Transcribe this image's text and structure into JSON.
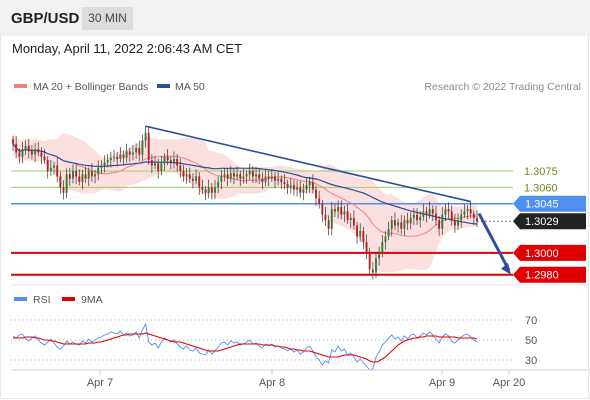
{
  "header": {
    "pair": "GBP/USD",
    "timeframe": "30 MIN",
    "datetime": "Monday, April 11, 2022 2:06:43 AM CET"
  },
  "legend": {
    "bollinger": "MA 20 + Bollinger Bands",
    "ma50": "MA 50",
    "credit": "Research © 2022 Trading Central",
    "rsi": "RSI",
    "rsi_ma": "9MA"
  },
  "colors": {
    "candle_up": "#2f7d2f",
    "candle_down": "#b22222",
    "bollinger_band": "#fbd9d9",
    "bollinger_line": "#f08080",
    "ma50": "#2b4f9c",
    "trendline": "#2b4f9c",
    "pivot": "#4f8ff0",
    "support": "#e00000",
    "resistance": "#9acd6a",
    "last_price": "#222222",
    "rsi_line": "#4f8ff0",
    "rsi_ma_line": "#e00000"
  },
  "levels": {
    "resistance": [
      "1.3075",
      "1.3060"
    ],
    "pivot": "1.3045",
    "last_price": "1.3029",
    "support": [
      "1.3000",
      "1.2980"
    ]
  },
  "chart_data": [
    {
      "type": "candlestick",
      "title": "GBP/USD 30 MIN",
      "x_ticks": [
        "Apr 7",
        "Apr 8",
        "Apr 9",
        "Apr 20"
      ],
      "ylim": [
        1.2977,
        1.314
      ],
      "grid": false,
      "legend_position": "top-left",
      "horizontal_levels": [
        {
          "value": 1.3075,
          "label": "1.3075",
          "kind": "resistance"
        },
        {
          "value": 1.306,
          "label": "1.3060",
          "kind": "resistance"
        },
        {
          "value": 1.3045,
          "label": "1.3045",
          "kind": "pivot"
        },
        {
          "value": 1.3029,
          "label": "1.3029",
          "kind": "last"
        },
        {
          "value": 1.3,
          "label": "1.3000",
          "kind": "support"
        },
        {
          "value": 1.298,
          "label": "1.2980",
          "kind": "support"
        }
      ],
      "close": [
        1.31,
        1.3092,
        1.3088,
        1.3095,
        1.3098,
        1.3093,
        1.309,
        1.3095,
        1.3092,
        1.3088,
        1.3085,
        1.3075,
        1.3078,
        1.308,
        1.307,
        1.306,
        1.3055,
        1.3072,
        1.3068,
        1.3075,
        1.307,
        1.3065,
        1.3072,
        1.3068,
        1.3075,
        1.307,
        1.3072,
        1.3078,
        1.308,
        1.3083,
        1.3085,
        1.3087,
        1.3088,
        1.3086,
        1.309,
        1.3087,
        1.3093,
        1.309,
        1.3092,
        1.3096,
        1.309,
        1.3103,
        1.311,
        1.3085,
        1.308,
        1.3082,
        1.3075,
        1.3082,
        1.3088,
        1.3085,
        1.3083,
        1.3086,
        1.308,
        1.3075,
        1.307,
        1.3072,
        1.3068,
        1.3066,
        1.307,
        1.306,
        1.3058,
        1.3055,
        1.306,
        1.3055,
        1.306,
        1.3065,
        1.307,
        1.3072,
        1.3068,
        1.3073,
        1.307,
        1.3072,
        1.3068,
        1.307,
        1.3072,
        1.3075,
        1.307,
        1.3072,
        1.3068,
        1.3065,
        1.307,
        1.3068,
        1.307,
        1.3066,
        1.3068,
        1.3065,
        1.3063,
        1.306,
        1.3062,
        1.3058,
        1.306,
        1.3055,
        1.3058,
        1.3062,
        1.3065,
        1.3058,
        1.305,
        1.3045,
        1.3035,
        1.303,
        1.3022,
        1.304,
        1.3038,
        1.3042,
        1.3035,
        1.3038,
        1.303,
        1.3032,
        1.3025,
        1.3015,
        1.302,
        1.301,
        1.3,
        1.2985,
        1.2982,
        1.2995,
        1.3,
        1.301,
        1.3015,
        1.3022,
        1.303,
        1.3025,
        1.3028,
        1.3022,
        1.303,
        1.3027,
        1.3032,
        1.3035,
        1.303,
        1.3033,
        1.3038,
        1.3035,
        1.304,
        1.3036,
        1.303,
        1.3022,
        1.3035,
        1.304,
        1.3038,
        1.303,
        1.3025,
        1.303,
        1.3035,
        1.3038,
        1.304,
        1.3036,
        1.3032,
        1.3029
      ]
    },
    {
      "type": "line",
      "title": "RSI",
      "ylim": [
        20,
        80
      ],
      "y_ticks": [
        70,
        50,
        30
      ],
      "series": [
        {
          "name": "RSI",
          "values": [
            54,
            52,
            55,
            56,
            51,
            49,
            52,
            54,
            50,
            47,
            45,
            48,
            51,
            47,
            43,
            41,
            44,
            49,
            46,
            48,
            46,
            45,
            49,
            47,
            51,
            48,
            50,
            52,
            53,
            55,
            56,
            58,
            57,
            56,
            59,
            55,
            57,
            54,
            55,
            58,
            52,
            60,
            66,
            48,
            45,
            47,
            42,
            48,
            52,
            50,
            48,
            50,
            46,
            43,
            41,
            44,
            40,
            39,
            42,
            37,
            36,
            35,
            40,
            36,
            39,
            43,
            47,
            48,
            45,
            49,
            47,
            48,
            45,
            46,
            48,
            50,
            46,
            47,
            44,
            42,
            46,
            44,
            46,
            43,
            44,
            42,
            41,
            39,
            41,
            38,
            40,
            36,
            38,
            42,
            44,
            39,
            33,
            30,
            25,
            29,
            27,
            40,
            38,
            44,
            39,
            41,
            35,
            37,
            33,
            28,
            31,
            27,
            24,
            20,
            21,
            33,
            38,
            45,
            48,
            52,
            55,
            51,
            53,
            49,
            54,
            51,
            55,
            56,
            52,
            54,
            57,
            55,
            58,
            55,
            51,
            47,
            53,
            56,
            54,
            49,
            47,
            50,
            53,
            55,
            56,
            53,
            50,
            48
          ]
        },
        {
          "name": "9MA",
          "values": [
            52,
            52,
            52,
            52,
            53,
            53,
            53,
            52,
            52,
            51,
            50,
            50,
            49,
            49,
            48,
            47,
            46,
            46,
            46,
            46,
            46,
            46,
            46,
            46,
            47,
            47,
            47,
            48,
            48,
            49,
            50,
            51,
            52,
            53,
            54,
            55,
            55,
            56,
            56,
            56,
            56,
            56,
            57,
            56,
            55,
            54,
            53,
            52,
            51,
            50,
            49,
            48,
            48,
            48,
            47,
            46,
            45,
            44,
            43,
            42,
            41,
            40,
            39,
            39,
            39,
            39,
            40,
            41,
            42,
            43,
            44,
            45,
            46,
            46,
            46,
            46,
            46,
            46,
            46,
            45,
            45,
            45,
            45,
            44,
            44,
            43,
            43,
            42,
            41,
            41,
            40,
            40,
            39,
            39,
            39,
            38,
            37,
            36,
            35,
            34,
            33,
            33,
            33,
            33,
            34,
            35,
            35,
            35,
            35,
            34,
            33,
            32,
            31,
            29,
            28,
            28,
            29,
            31,
            33,
            36,
            39,
            42,
            45,
            47,
            49,
            50,
            51,
            52,
            52,
            53,
            53,
            54,
            54,
            54,
            54,
            53,
            53,
            53,
            53,
            53,
            53,
            52,
            52,
            52,
            52,
            52,
            52,
            51
          ]
        }
      ]
    }
  ]
}
